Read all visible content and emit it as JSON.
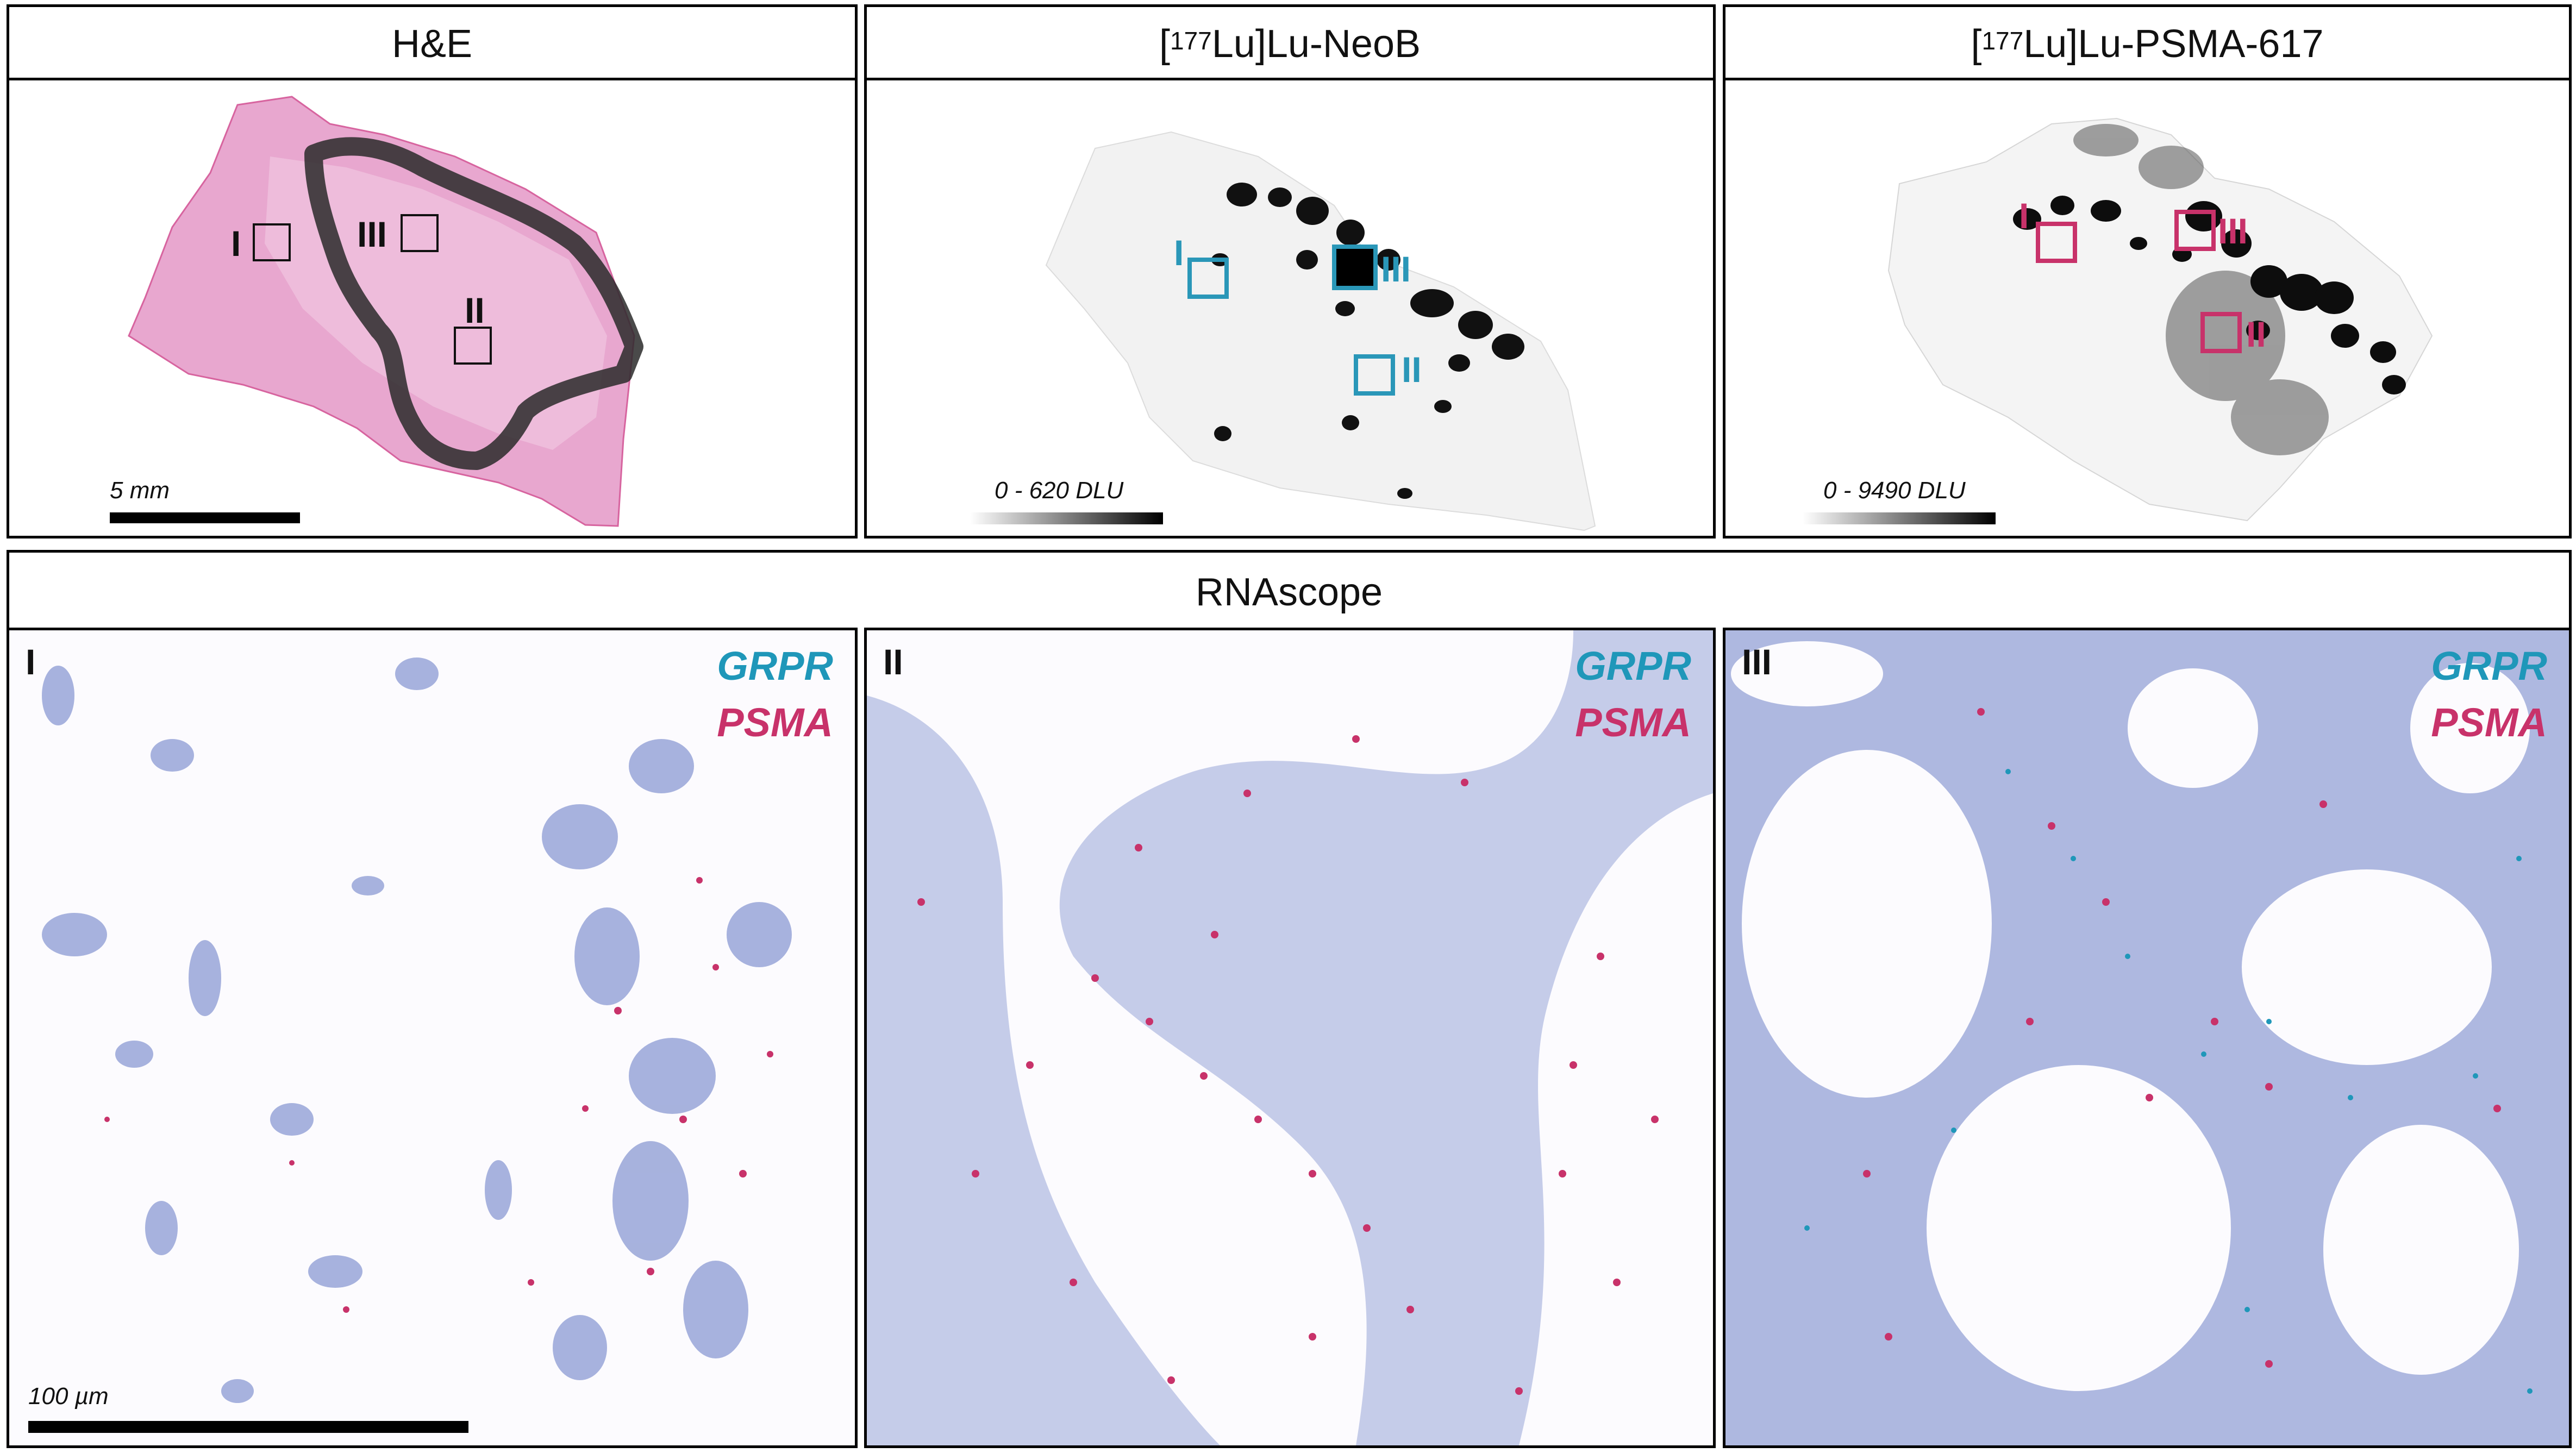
{
  "top_panels": {
    "he": {
      "title": "H&E",
      "regions": [
        "I",
        "III",
        "II"
      ],
      "scale_label": "5 mm"
    },
    "neob": {
      "title_sup": "177",
      "title_rest": "Lu]Lu-NeoB",
      "title_open": "[",
      "regions": [
        "I",
        "III",
        "II"
      ],
      "scale_label": "0 - 620 DLU",
      "region_color": "#2a97b8"
    },
    "psma": {
      "title_sup": "177",
      "title_rest": "Lu]Lu-PSMA-617",
      "title_open": "[",
      "regions": [
        "I",
        "III",
        "II"
      ],
      "scale_label": "0 - 9490 DLU",
      "region_color": "#c8326a"
    }
  },
  "rnascope": {
    "title": "RNAscope",
    "panels": [
      {
        "label": "I",
        "legend_grpr": "GRPR",
        "legend_psma": "PSMA"
      },
      {
        "label": "II",
        "legend_grpr": "GRPR",
        "legend_psma": "PSMA"
      },
      {
        "label": "III",
        "legend_grpr": "GRPR",
        "legend_psma": "PSMA"
      }
    ],
    "scale_label": "100 µm"
  },
  "colors": {
    "grpr": "#1f97b9",
    "psma": "#c8326a",
    "nuclei": "#7f8fd0",
    "he_tissue": "#e69fcb"
  }
}
